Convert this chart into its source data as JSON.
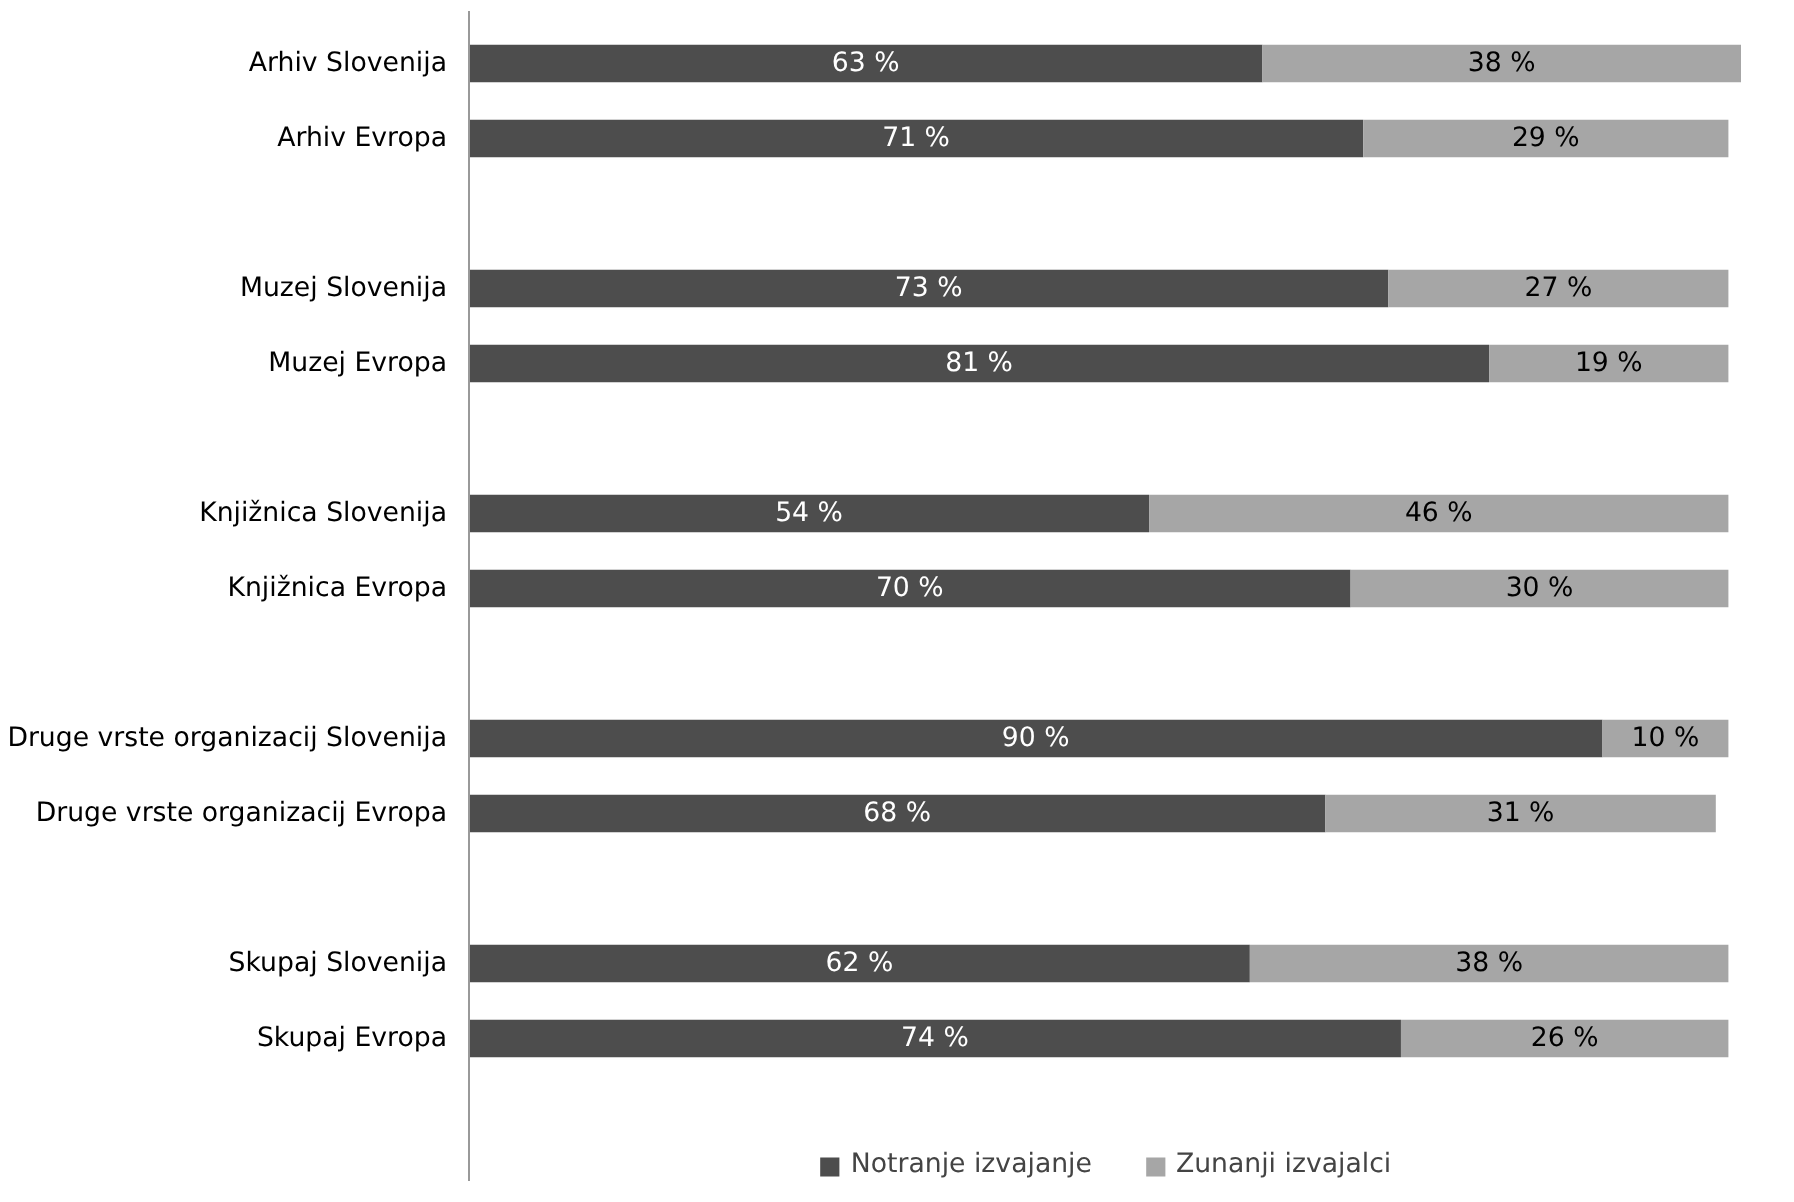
{
  "chart_data": {
    "type": "bar",
    "orientation": "horizontal",
    "stacked": true,
    "data_labels": true,
    "legend": "bottom",
    "tick_labels": "y",
    "categories": [
      "Arhiv Slovenija",
      "Arhiv Evropa",
      null,
      "Muzej Slovenija",
      "Muzej Evropa",
      null,
      "Knjižnica Slovenija",
      "Knjižnica Evropa",
      null,
      "Druge vrste organizacij Slovenija",
      "Druge vrste organizacij Evropa",
      null,
      "Skupaj Slovenija",
      "Skupaj Evropa"
    ],
    "series": [
      {
        "name": "Notranje izvajanje",
        "color": "#4d4d4d",
        "values": [
          63,
          71,
          null,
          73,
          81,
          null,
          54,
          70,
          null,
          90,
          68,
          null,
          62,
          74
        ],
        "value_labels": [
          "63 %",
          "71 %",
          null,
          "73 %",
          "81 %",
          null,
          "54 %",
          "70 %",
          null,
          "90 %",
          "68 %",
          null,
          "62 %",
          "74 %"
        ]
      },
      {
        "name": "Zunanji izvajalci",
        "color": "#a6a6a6",
        "values": [
          38,
          29,
          null,
          27,
          19,
          null,
          46,
          30,
          null,
          10,
          31,
          null,
          38,
          26
        ],
        "value_labels": [
          "38 %",
          "29 %",
          null,
          "27 %",
          "19 %",
          null,
          "46 %",
          "30 %",
          null,
          "10 %",
          "31 %",
          null,
          "38 %",
          "26 %"
        ]
      }
    ]
  }
}
